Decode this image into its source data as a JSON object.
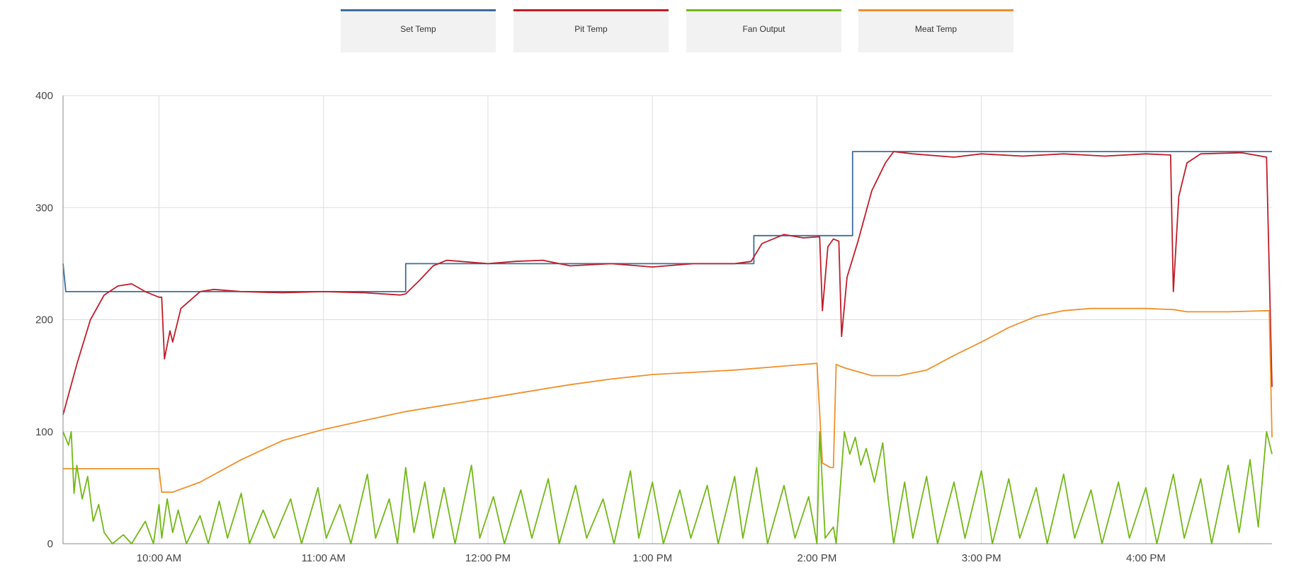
{
  "legend": [
    {
      "label": "Set Temp",
      "color": "#3d6e9c"
    },
    {
      "label": "Pit Temp",
      "color": "#c01c28"
    },
    {
      "label": "Fan Output",
      "color": "#73b816"
    },
    {
      "label": "Meat Temp",
      "color": "#f0902a"
    }
  ],
  "chart_data": {
    "type": "line",
    "xlim": [
      "9:25 AM",
      "4:46 PM"
    ],
    "ylim": [
      0,
      400
    ],
    "y_ticks": [
      "0",
      "100",
      "200",
      "300",
      "400"
    ],
    "x_ticks": [
      "10:00 AM",
      "11:00 AM",
      "12:00 PM",
      "1:00 PM",
      "2:00 PM",
      "3:00 PM",
      "4:00 PM"
    ],
    "grid": true,
    "legend_position": "top",
    "series": [
      {
        "name": "Set Temp",
        "color": "#3d6e9c",
        "points": [
          [
            "9:25 AM",
            250
          ],
          [
            "9:26 AM",
            225
          ],
          [
            "11:30 AM",
            225
          ],
          [
            "11:30 AM",
            250
          ],
          [
            "1:37 PM",
            250
          ],
          [
            "1:37 PM",
            275
          ],
          [
            "2:13 PM",
            275
          ],
          [
            "2:13 PM",
            350
          ],
          [
            "4:46 PM",
            350
          ]
        ]
      },
      {
        "name": "Pit Temp",
        "color": "#c01c28",
        "points": [
          [
            "9:25 AM",
            115
          ],
          [
            "9:30 AM",
            160
          ],
          [
            "9:35 AM",
            200
          ],
          [
            "9:40 AM",
            222
          ],
          [
            "9:45 AM",
            230
          ],
          [
            "9:50 AM",
            232
          ],
          [
            "9:55 AM",
            225
          ],
          [
            "10:00 AM",
            220
          ],
          [
            "10:01 AM",
            220
          ],
          [
            "10:02 AM",
            165
          ],
          [
            "10:04 AM",
            190
          ],
          [
            "10:05 AM",
            180
          ],
          [
            "10:08 AM",
            210
          ],
          [
            "10:15 AM",
            225
          ],
          [
            "10:20 AM",
            227
          ],
          [
            "10:30 AM",
            225
          ],
          [
            "10:45 AM",
            224
          ],
          [
            "11:00 AM",
            225
          ],
          [
            "11:15 AM",
            224
          ],
          [
            "11:28 AM",
            222
          ],
          [
            "11:30 AM",
            223
          ],
          [
            "11:35 AM",
            235
          ],
          [
            "11:40 AM",
            248
          ],
          [
            "11:45 AM",
            253
          ],
          [
            "12:00 PM",
            250
          ],
          [
            "12:10 PM",
            252
          ],
          [
            "12:20 PM",
            253
          ],
          [
            "12:30 PM",
            248
          ],
          [
            "12:45 PM",
            250
          ],
          [
            "1:00 PM",
            247
          ],
          [
            "1:15 PM",
            250
          ],
          [
            "1:30 PM",
            250
          ],
          [
            "1:36 PM",
            252
          ],
          [
            "1:40 PM",
            268
          ],
          [
            "1:48 PM",
            276
          ],
          [
            "1:55 PM",
            273
          ],
          [
            "2:01 PM",
            274
          ],
          [
            "2:02 PM",
            208
          ],
          [
            "2:04 PM",
            265
          ],
          [
            "2:06 PM",
            272
          ],
          [
            "2:08 PM",
            270
          ],
          [
            "2:09 PM",
            185
          ],
          [
            "2:11 PM",
            238
          ],
          [
            "2:15 PM",
            270
          ],
          [
            "2:20 PM",
            315
          ],
          [
            "2:25 PM",
            340
          ],
          [
            "2:28 PM",
            350
          ],
          [
            "2:35 PM",
            348
          ],
          [
            "2:50 PM",
            345
          ],
          [
            "3:00 PM",
            348
          ],
          [
            "3:15 PM",
            346
          ],
          [
            "3:30 PM",
            348
          ],
          [
            "3:45 PM",
            346
          ],
          [
            "4:00 PM",
            348
          ],
          [
            "4:09 PM",
            347
          ],
          [
            "4:10 PM",
            225
          ],
          [
            "4:12 PM",
            310
          ],
          [
            "4:15 PM",
            340
          ],
          [
            "4:20 PM",
            348
          ],
          [
            "4:35 PM",
            349
          ],
          [
            "4:44 PM",
            345
          ],
          [
            "4:46 PM",
            140
          ]
        ]
      },
      {
        "name": "Meat Temp",
        "color": "#f0902a",
        "points": [
          [
            "9:25 AM",
            67
          ],
          [
            "9:40 AM",
            67
          ],
          [
            "10:00 AM",
            67
          ],
          [
            "10:01 AM",
            46
          ],
          [
            "10:05 AM",
            46
          ],
          [
            "10:15 AM",
            55
          ],
          [
            "10:30 AM",
            75
          ],
          [
            "10:45 AM",
            92
          ],
          [
            "11:00 AM",
            102
          ],
          [
            "11:15 AM",
            110
          ],
          [
            "11:30 AM",
            118
          ],
          [
            "11:45 AM",
            124
          ],
          [
            "12:00 PM",
            130
          ],
          [
            "12:15 PM",
            136
          ],
          [
            "12:30 PM",
            142
          ],
          [
            "12:45 PM",
            147
          ],
          [
            "1:00 PM",
            151
          ],
          [
            "1:15 PM",
            153
          ],
          [
            "1:30 PM",
            155
          ],
          [
            "1:45 PM",
            158
          ],
          [
            "2:00 PM",
            161
          ],
          [
            "2:02 PM",
            72
          ],
          [
            "2:05 PM",
            68
          ],
          [
            "2:06 PM",
            68
          ],
          [
            "2:07 PM",
            160
          ],
          [
            "2:10 PM",
            157
          ],
          [
            "2:20 PM",
            150
          ],
          [
            "2:30 PM",
            150
          ],
          [
            "2:40 PM",
            155
          ],
          [
            "2:50 PM",
            168
          ],
          [
            "3:00 PM",
            180
          ],
          [
            "3:10 PM",
            193
          ],
          [
            "3:20 PM",
            203
          ],
          [
            "3:30 PM",
            208
          ],
          [
            "3:40 PM",
            210
          ],
          [
            "4:00 PM",
            210
          ],
          [
            "4:10 PM",
            209
          ],
          [
            "4:15 PM",
            207
          ],
          [
            "4:30 PM",
            207
          ],
          [
            "4:45 PM",
            208
          ],
          [
            "4:46 PM",
            95
          ]
        ]
      },
      {
        "name": "Fan Output",
        "color": "#73b816",
        "points": [
          [
            "9:25 AM",
            100
          ],
          [
            "9:27 AM",
            88
          ],
          [
            "9:28 AM",
            100
          ],
          [
            "9:29 AM",
            45
          ],
          [
            "9:30 AM",
            70
          ],
          [
            "9:32 AM",
            40
          ],
          [
            "9:34 AM",
            60
          ],
          [
            "9:36 AM",
            20
          ],
          [
            "9:38 AM",
            35
          ],
          [
            "9:40 AM",
            10
          ],
          [
            "9:43 AM",
            0
          ],
          [
            "9:47 AM",
            8
          ],
          [
            "9:50 AM",
            0
          ],
          [
            "9:55 AM",
            20
          ],
          [
            "9:58 AM",
            0
          ],
          [
            "10:00 AM",
            35
          ],
          [
            "10:01 AM",
            5
          ],
          [
            "10:03 AM",
            40
          ],
          [
            "10:05 AM",
            10
          ],
          [
            "10:07 AM",
            30
          ],
          [
            "10:10 AM",
            0
          ],
          [
            "10:15 AM",
            25
          ],
          [
            "10:18 AM",
            0
          ],
          [
            "10:22 AM",
            38
          ],
          [
            "10:25 AM",
            5
          ],
          [
            "10:30 AM",
            45
          ],
          [
            "10:33 AM",
            0
          ],
          [
            "10:38 AM",
            30
          ],
          [
            "10:42 AM",
            5
          ],
          [
            "10:48 AM",
            40
          ],
          [
            "10:52 AM",
            0
          ],
          [
            "10:58 AM",
            50
          ],
          [
            "11:01 AM",
            5
          ],
          [
            "11:06 AM",
            35
          ],
          [
            "11:10 AM",
            0
          ],
          [
            "11:16 AM",
            62
          ],
          [
            "11:19 AM",
            5
          ],
          [
            "11:24 AM",
            40
          ],
          [
            "11:27 AM",
            0
          ],
          [
            "11:30 AM",
            68
          ],
          [
            "11:33 AM",
            10
          ],
          [
            "11:37 AM",
            55
          ],
          [
            "11:40 AM",
            5
          ],
          [
            "11:44 AM",
            50
          ],
          [
            "11:48 AM",
            0
          ],
          [
            "11:54 AM",
            70
          ],
          [
            "11:57 AM",
            5
          ],
          [
            "12:02 PM",
            42
          ],
          [
            "12:06 PM",
            0
          ],
          [
            "12:12 PM",
            48
          ],
          [
            "12:16 PM",
            5
          ],
          [
            "12:22 PM",
            58
          ],
          [
            "12:26 PM",
            0
          ],
          [
            "12:32 PM",
            52
          ],
          [
            "12:36 PM",
            5
          ],
          [
            "12:42 PM",
            40
          ],
          [
            "12:46 PM",
            0
          ],
          [
            "12:52 PM",
            65
          ],
          [
            "12:55 PM",
            5
          ],
          [
            "1:00 PM",
            55
          ],
          [
            "1:04 PM",
            0
          ],
          [
            "1:10 PM",
            48
          ],
          [
            "1:14 PM",
            5
          ],
          [
            "1:20 PM",
            52
          ],
          [
            "1:24 PM",
            0
          ],
          [
            "1:30 PM",
            60
          ],
          [
            "1:33 PM",
            5
          ],
          [
            "1:38 PM",
            68
          ],
          [
            "1:42 PM",
            0
          ],
          [
            "1:48 PM",
            52
          ],
          [
            "1:52 PM",
            5
          ],
          [
            "1:57 PM",
            42
          ],
          [
            "2:00 PM",
            0
          ],
          [
            "2:01 PM",
            100
          ],
          [
            "2:03 PM",
            5
          ],
          [
            "2:06 PM",
            15
          ],
          [
            "2:07 PM",
            0
          ],
          [
            "2:10 PM",
            100
          ],
          [
            "2:12 PM",
            80
          ],
          [
            "2:14 PM",
            95
          ],
          [
            "2:16 PM",
            70
          ],
          [
            "2:18 PM",
            85
          ],
          [
            "2:21 PM",
            55
          ],
          [
            "2:24 PM",
            90
          ],
          [
            "2:26 PM",
            40
          ],
          [
            "2:28 PM",
            0
          ],
          [
            "2:32 PM",
            55
          ],
          [
            "2:35 PM",
            5
          ],
          [
            "2:40 PM",
            60
          ],
          [
            "2:44 PM",
            0
          ],
          [
            "2:50 PM",
            55
          ],
          [
            "2:54 PM",
            5
          ],
          [
            "3:00 PM",
            65
          ],
          [
            "3:04 PM",
            0
          ],
          [
            "3:10 PM",
            58
          ],
          [
            "3:14 PM",
            5
          ],
          [
            "3:20 PM",
            50
          ],
          [
            "3:24 PM",
            0
          ],
          [
            "3:30 PM",
            62
          ],
          [
            "3:34 PM",
            5
          ],
          [
            "3:40 PM",
            48
          ],
          [
            "3:44 PM",
            0
          ],
          [
            "3:50 PM",
            55
          ],
          [
            "3:54 PM",
            5
          ],
          [
            "4:00 PM",
            50
          ],
          [
            "4:04 PM",
            0
          ],
          [
            "4:10 PM",
            62
          ],
          [
            "4:14 PM",
            5
          ],
          [
            "4:20 PM",
            58
          ],
          [
            "4:24 PM",
            0
          ],
          [
            "4:30 PM",
            70
          ],
          [
            "4:34 PM",
            10
          ],
          [
            "4:38 PM",
            75
          ],
          [
            "4:41 PM",
            15
          ],
          [
            "4:44 PM",
            100
          ],
          [
            "4:46 PM",
            80
          ]
        ]
      }
    ]
  }
}
